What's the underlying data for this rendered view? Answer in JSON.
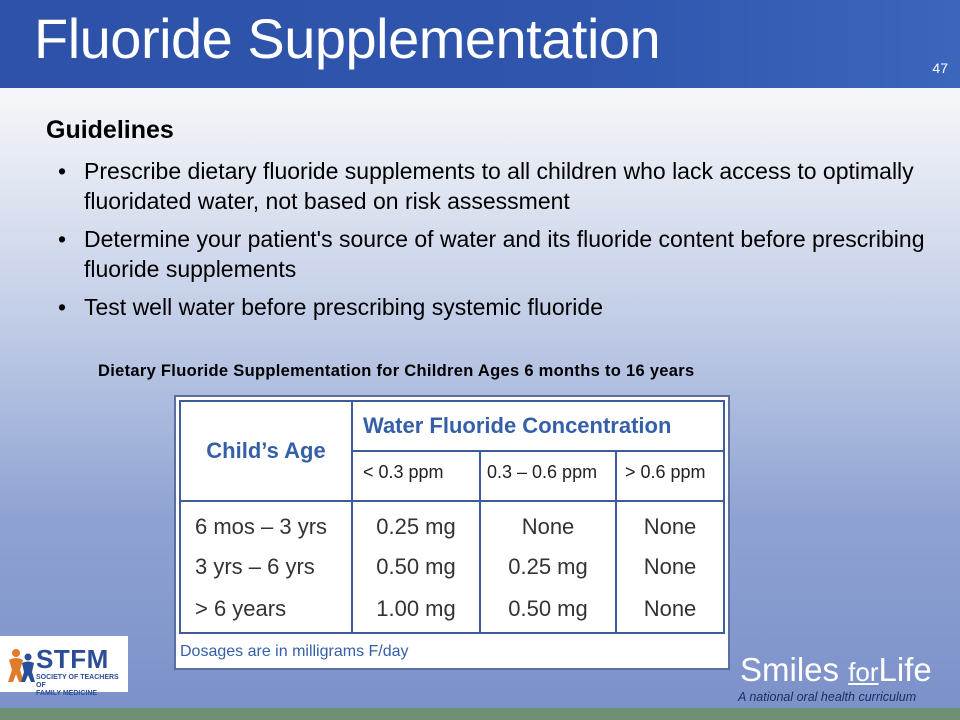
{
  "slide": {
    "title": "Fluoride Supplementation",
    "number": "47",
    "subheading": "Guidelines",
    "bullets": [
      "Prescribe dietary fluoride supplements to all children who lack access to optimally fluoridated water, not based on risk assessment",
      "Determine your patient's source of water and its fluoride content before prescribing fluoride supplements",
      "Test well water before prescribing systemic fluoride"
    ]
  },
  "table": {
    "caption": "Dietary Fluoride Supplementation for Children Ages 6 months to 16 years",
    "row_header": "Child’s Age",
    "group_header": "Water Fluoride Concentration",
    "columns": [
      "< 0.3 ppm",
      "0.3 – 0.6 ppm",
      "> 0.6 ppm"
    ],
    "rows": [
      {
        "age": "6 mos – 3 yrs",
        "values": [
          "0.25 mg",
          "None",
          "None"
        ]
      },
      {
        "age": "3 yrs – 6 yrs",
        "values": [
          "0.50 mg",
          "0.25 mg",
          "None"
        ]
      },
      {
        "age": "> 6 years",
        "values": [
          "1.00 mg",
          "0.50 mg",
          "None"
        ]
      }
    ],
    "note": "Dosages are in milligrams F/day"
  },
  "logos": {
    "stfm": "STFM",
    "stfm_line1": "SOCIETY OF TEACHERS OF",
    "stfm_line2": "FAMILY MEDICINE",
    "smiles_a": "Smiles ",
    "smiles_for": "for",
    "smiles_b": "Life",
    "smiles_tagline": "A national oral health curriculum"
  },
  "colors": {
    "header_blue": "#2f55ad",
    "table_border": "#3c5c9a",
    "header_text": "#3560a8",
    "footer_green": "#6f8f74"
  }
}
